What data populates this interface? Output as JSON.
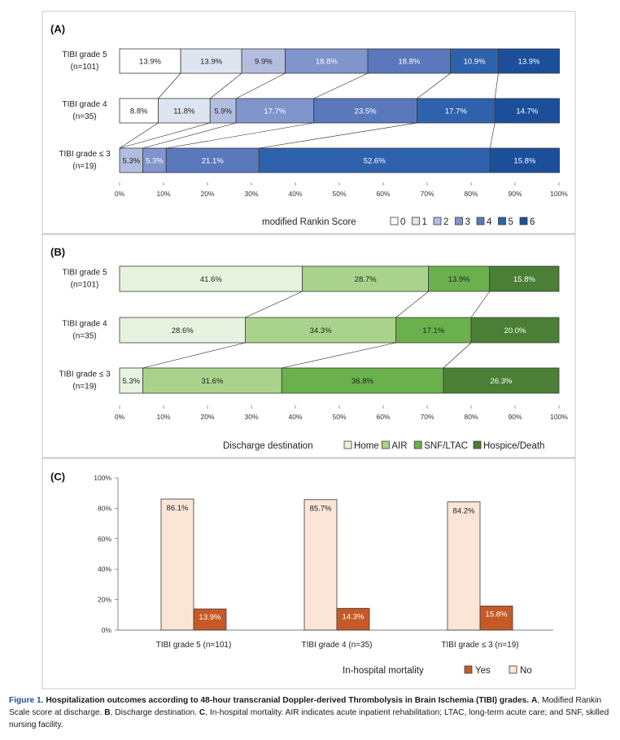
{
  "panel_a": {
    "label": "(A)",
    "legend_title": "modified Rankin  Score",
    "tick_labels": [
      "0%",
      "10%",
      "20%",
      "30%",
      "40%",
      "50%",
      "60%",
      "70%",
      "80%",
      "90%",
      "100%"
    ]
  },
  "panel_b": {
    "label": "(B)",
    "legend_title": "Discharge destination",
    "tick_labels": [
      "0%",
      "10%",
      "20%",
      "30%",
      "40%",
      "50%",
      "60%",
      "70%",
      "80%",
      "90%",
      "100%"
    ]
  },
  "panel_c": {
    "label": "(C)",
    "legend_title": "In-hospital mortality",
    "y_tick_labels": [
      "0%",
      "20%",
      "40%",
      "60%",
      "80%",
      "100%"
    ]
  },
  "caption": {
    "figure_label": "Figure 1.",
    "title": "Hospitalization outcomes according to 48-hour transcranial Doppler-derived Thrombolysis in Brain Ischemia (TIBI) grades.",
    "body_a": "A",
    "body_a_text": ", Modified Rankin Scale score at discharge. ",
    "body_b": "B",
    "body_b_text": ", Discharge destination. ",
    "body_c": "C",
    "body_c_text": ", In-hospital mortality. AIR indicates acute inpatient rehabilitation; LTAC, long-term acute care; and SNF, skilled nursing facility."
  },
  "chart_data": [
    {
      "type": "bar",
      "orientation": "horizontal-stacked",
      "categories": [
        "TIBI grade 5|(n=101)",
        "TIBI grade 4|(n=35)",
        "TIBI grade ≤ 3|(n=19)"
      ],
      "series": [
        {
          "name": "0",
          "color": "#ffffff",
          "values": [
            13.9,
            8.8,
            0
          ]
        },
        {
          "name": "1",
          "color": "#dfe4f1",
          "values": [
            13.9,
            11.8,
            0
          ]
        },
        {
          "name": "2",
          "color": "#b3bedf",
          "values": [
            9.9,
            5.9,
            5.3
          ]
        },
        {
          "name": "3",
          "color": "#7f95cc",
          "values": [
            18.8,
            17.7,
            5.3
          ]
        },
        {
          "name": "4",
          "color": "#5a78bb",
          "values": [
            18.8,
            23.5,
            21.1
          ]
        },
        {
          "name": "5",
          "color": "#2f62ad",
          "values": [
            10.9,
            17.7,
            52.6
          ]
        },
        {
          "name": "6",
          "color": "#1b4f9a",
          "values": [
            13.9,
            14.7,
            15.8
          ]
        }
      ],
      "labels": [
        [
          "13.9%",
          "13.9%",
          "9.9%",
          "18.8%",
          "18.8%",
          "10.9%",
          "13.9%"
        ],
        [
          "8.8%",
          "11.8%",
          "5.9%",
          "17.7%",
          "23.5%",
          "17.7%",
          "14.7%"
        ],
        [
          "",
          "",
          "5.3%",
          "5.3%",
          "21.1%",
          "52.6%",
          "15.8%"
        ]
      ],
      "xlim": [
        0,
        100
      ],
      "legend_placement": "bottom-right"
    },
    {
      "type": "bar",
      "orientation": "horizontal-stacked",
      "categories": [
        "TIBI grade 5|(n=101)",
        "TIBI grade 4|(n=35)",
        "TIBI grade ≤ 3|(n=19)"
      ],
      "series": [
        {
          "name": "Home",
          "color": "#e8f3df",
          "values": [
            41.6,
            28.6,
            5.3
          ]
        },
        {
          "name": "AIR",
          "color": "#a9d38c",
          "values": [
            28.7,
            34.3,
            31.6
          ]
        },
        {
          "name": "SNF/LTAC",
          "color": "#6ab04c",
          "values": [
            13.9,
            17.1,
            36.8
          ]
        },
        {
          "name": "Hospice/Death",
          "color": "#4a7f35",
          "values": [
            15.8,
            20.0,
            26.3
          ]
        }
      ],
      "labels": [
        [
          "41.6%",
          "28.7%",
          "13.9%",
          "15.8%"
        ],
        [
          "28.6%",
          "34.3%",
          "17.1%",
          "20.0%"
        ],
        [
          "5.3%",
          "31.6%",
          "36.8%",
          "26.3%"
        ]
      ],
      "xlim": [
        0,
        100
      ],
      "legend_placement": "bottom-right"
    },
    {
      "type": "bar",
      "orientation": "vertical-grouped",
      "categories": [
        "TIBI grade 5 (n=101)",
        "TIBI grade 4 (n=35)",
        "TIBI grade ≤ 3 (n=19)"
      ],
      "series": [
        {
          "name": "No",
          "color": "#fbe5d6",
          "values": [
            86.1,
            85.7,
            84.2
          ]
        },
        {
          "name": "Yes",
          "color": "#c55a27",
          "values": [
            13.9,
            14.3,
            15.8
          ]
        }
      ],
      "labels": [
        [
          "86.1%",
          "85.7%",
          "84.2%"
        ],
        [
          "13.9%",
          "14.3%",
          "15.8%"
        ]
      ],
      "ylim": [
        0,
        100
      ],
      "legend_order": [
        "Yes",
        "No"
      ],
      "legend_placement": "bottom-right"
    }
  ]
}
